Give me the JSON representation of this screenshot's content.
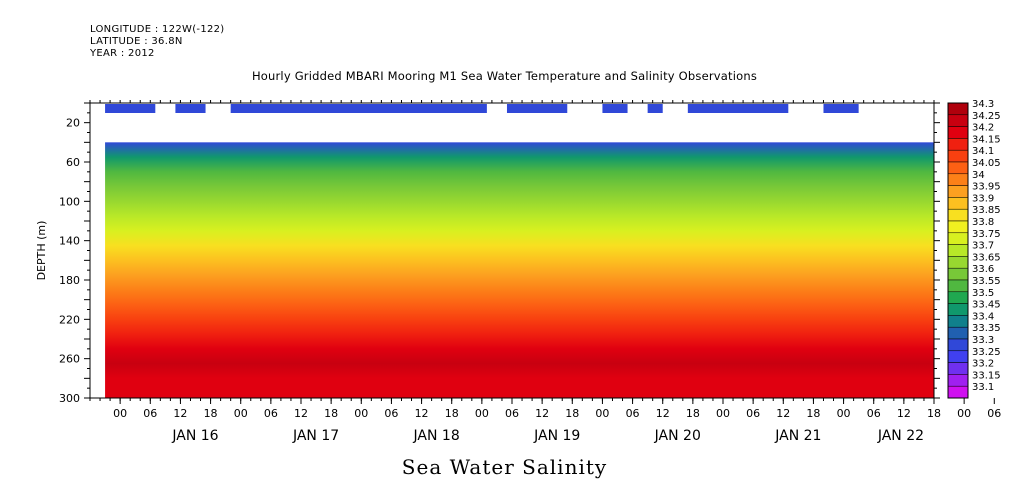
{
  "header": {
    "longitude": "LONGITUDE : 122W(-122)",
    "latitude": "LATITUDE : 36.8N",
    "year": "YEAR : 2012",
    "title": "Hourly Gridded MBARI Mooring M1 Sea Water Temperature and Salinity Observations"
  },
  "caption": "Sea Water Salinity",
  "chart_data": {
    "type": "heatmap",
    "title": "Hourly Gridded MBARI Mooring M1 Sea Water Temperature and Salinity Observations",
    "variable": "Sea Water Salinity",
    "ylabel": "DEPTH (m)",
    "y_axis_inverted": true,
    "ylim": [
      300,
      0
    ],
    "y_ticks": [
      20,
      60,
      100,
      140,
      180,
      220,
      260,
      300
    ],
    "x_range_hours": [
      "2012-01-15T15:00",
      "2012-01-22T15:00"
    ],
    "x_hour_ticks": [
      "00",
      "06",
      "12",
      "18",
      "00",
      "06",
      "12",
      "18",
      "00",
      "06",
      "12",
      "18",
      "00",
      "06",
      "12",
      "18",
      "00",
      "06",
      "12",
      "18",
      "00",
      "06",
      "12",
      "18",
      "00",
      "06",
      "12",
      "18",
      "00",
      "06",
      "12"
    ],
    "x_day_labels": [
      "JAN 16",
      "JAN 17",
      "JAN 18",
      "JAN 19",
      "JAN 20",
      "JAN 21",
      "JAN 22"
    ],
    "colorbar_levels": [
      "34.3",
      "34.25",
      "34.2",
      "34.15",
      "34.1",
      "34.05",
      "34",
      "33.95",
      "33.9",
      "33.85",
      "33.8",
      "33.75",
      "33.7",
      "33.65",
      "33.6",
      "33.55",
      "33.5",
      "33.45",
      "33.4",
      "33.35",
      "33.3",
      "33.25",
      "33.2",
      "33.15",
      "33.1"
    ],
    "colorbar_colors": [
      "#b0000c",
      "#c80010",
      "#e00010",
      "#f02010",
      "#f84010",
      "#fc6014",
      "#fc8018",
      "#fca020",
      "#fcc020",
      "#f8e020",
      "#f0f020",
      "#d8f020",
      "#b8e828",
      "#98d830",
      "#78c838",
      "#50b840",
      "#20a850",
      "#10986c",
      "#10808c",
      "#2060b0",
      "#3048d8",
      "#4040f0",
      "#7030f0",
      "#a020f0",
      "#d010f0"
    ],
    "surface_salinity": 33.3,
    "surface_layer_depth": [
      0,
      40
    ],
    "surface_layer_segments_hours": [
      [
        15,
        25
      ],
      [
        29,
        35
      ],
      [
        40,
        72
      ],
      [
        68,
        84
      ],
      [
        83,
        91
      ],
      [
        95,
        107
      ],
      [
        114,
        119
      ],
      [
        123,
        126
      ],
      [
        131,
        151
      ],
      [
        158,
        165
      ],
      [
        183,
        190
      ]
    ],
    "profile_depth": [
      40,
      55,
      70,
      85,
      100,
      115,
      130,
      145,
      160,
      175,
      190,
      205,
      220,
      235,
      250,
      265,
      280,
      300
    ],
    "profile_salinity": [
      33.3,
      33.45,
      33.55,
      33.62,
      33.68,
      33.73,
      33.78,
      33.85,
      33.92,
      33.98,
      34.02,
      34.08,
      34.13,
      34.18,
      34.22,
      34.25,
      34.22,
      34.2
    ],
    "data_start_depth": 40
  }
}
